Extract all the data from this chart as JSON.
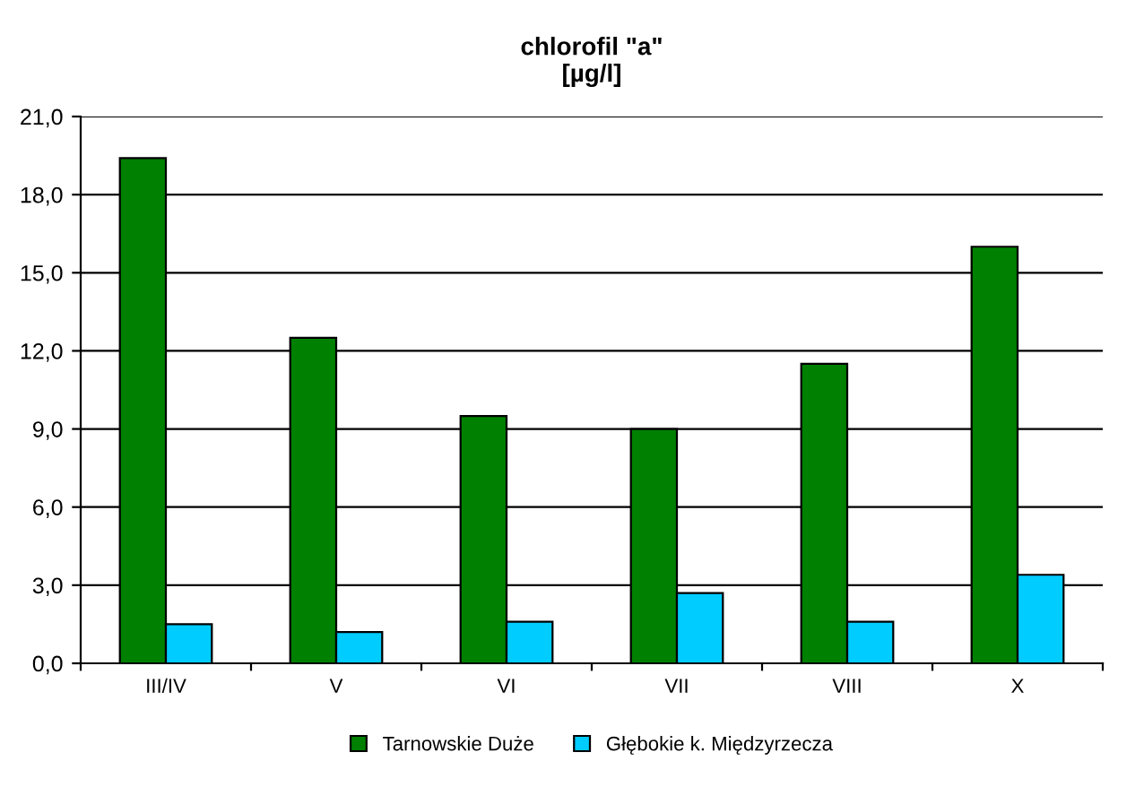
{
  "chart_data": {
    "type": "bar",
    "title": "chlorofil \"a\"\n[µg/l]",
    "categories": [
      "III/IV",
      "V",
      "VI",
      "VII",
      "VIII",
      "X"
    ],
    "series": [
      {
        "name": "Tarnowskie Duże",
        "color": "#008000",
        "values": [
          19.4,
          12.5,
          9.5,
          9.0,
          11.5,
          16.0
        ]
      },
      {
        "name": "Głębokie k. Międzyrzecza",
        "color": "#00ccff",
        "values": [
          1.5,
          1.2,
          1.6,
          2.7,
          1.6,
          3.4
        ]
      }
    ],
    "ylim": [
      0,
      21
    ],
    "yticks": [
      {
        "value": 0,
        "label": "0,0"
      },
      {
        "value": 3,
        "label": "3,0"
      },
      {
        "value": 6,
        "label": "6,0"
      },
      {
        "value": 9,
        "label": "9,0"
      },
      {
        "value": 12,
        "label": "12,0"
      },
      {
        "value": 15,
        "label": "15,0"
      },
      {
        "value": 18,
        "label": "18,0"
      },
      {
        "value": 21,
        "label": "21,0"
      }
    ],
    "grid": "y",
    "legend": "bottom"
  }
}
